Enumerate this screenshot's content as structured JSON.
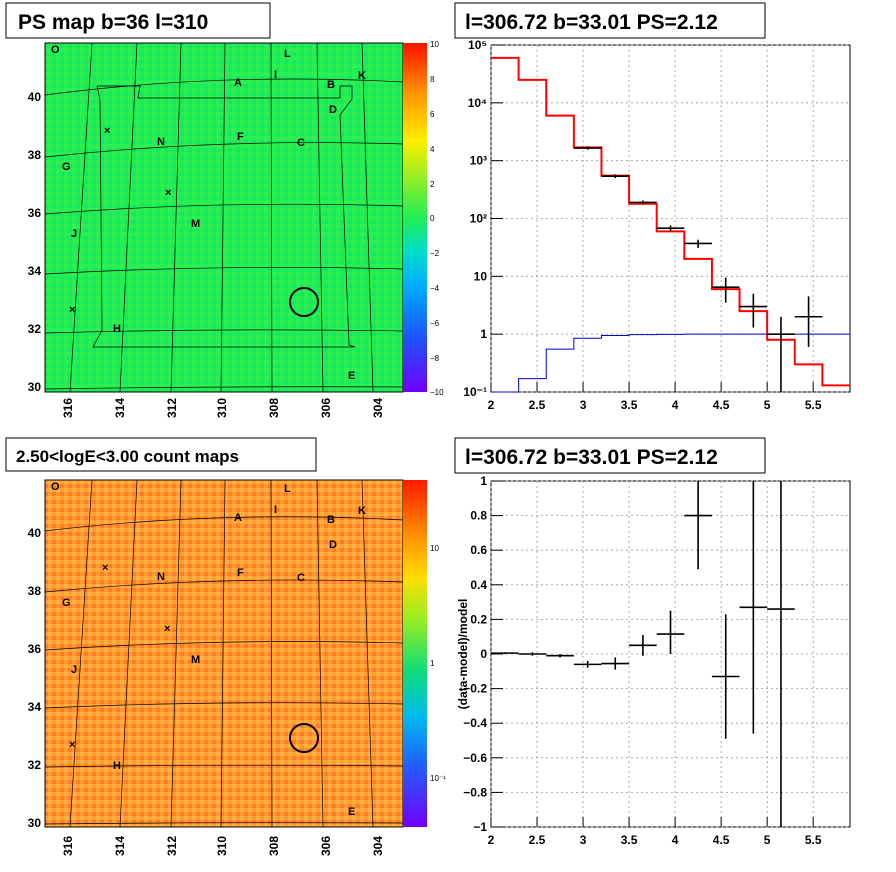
{
  "panels": {
    "ps_map": {
      "title": "PS map b=36 l=310",
      "x_ticks": [
        "316",
        "314",
        "312",
        "310",
        "308",
        "306",
        "304"
      ],
      "y_ticks": [
        "30",
        "32",
        "34",
        "36",
        "38",
        "40"
      ],
      "colorbar_ticks": [
        "10",
        "8",
        "6",
        "4",
        "2",
        "0",
        "−2",
        "−4",
        "−6",
        "−8",
        "−10"
      ]
    },
    "count_map": {
      "title": "2.50<logE<3.00 count maps",
      "x_ticks": [
        "316",
        "314",
        "312",
        "310",
        "308",
        "306",
        "304"
      ],
      "y_ticks": [
        "30",
        "32",
        "34",
        "36",
        "38",
        "40"
      ],
      "colorbar_ticks": [
        "10",
        "1",
        "10⁻¹"
      ]
    },
    "spectrum": {
      "title": "l=306.72 b=33.01 PS=2.12"
    },
    "residual": {
      "title": "l=306.72 b=33.01 PS=2.12"
    }
  },
  "map_labels": [
    "O",
    "L",
    "I",
    "K",
    "A",
    "B",
    "D",
    "N",
    "F",
    "C",
    "G",
    "M",
    "J",
    "H",
    "E"
  ],
  "colors": {
    "red": "#ff0000",
    "blue": "#0000cc",
    "map_green": "#22ee55",
    "map_orange": "#ff9933"
  },
  "chart_data": [
    {
      "type": "line",
      "title": "l=306.72 b=33.01 PS=2.12",
      "xlim": [
        2,
        5.9
      ],
      "ylim": [
        0.1,
        100000
      ],
      "yscale": "log",
      "x_ticks": [
        "2",
        "2.5",
        "3",
        "3.5",
        "4",
        "4.5",
        "5",
        "5.5"
      ],
      "y_ticks": [
        "10⁻¹",
        "1",
        "10",
        "10²",
        "10³",
        "10⁴",
        "10⁵"
      ],
      "grid": true,
      "series": [
        {
          "style": "step",
          "color": "#ff0000",
          "bin_edges": [
            2.0,
            2.3,
            2.6,
            2.9,
            3.2,
            3.5,
            3.8,
            4.1,
            4.4,
            4.7,
            5.0,
            5.3,
            5.6,
            5.9
          ],
          "values": [
            60000,
            25000,
            6000,
            1700,
            550,
            180,
            60,
            20,
            6,
            2.5,
            0.8,
            0.3,
            0.13
          ]
        },
        {
          "style": "step",
          "color": "#0000cc",
          "bin_edges": [
            2.0,
            2.3,
            2.6,
            2.9,
            3.2,
            3.5,
            3.8,
            4.1,
            4.4,
            4.7,
            5.0,
            5.3,
            5.6,
            5.9
          ],
          "values": [
            0.08,
            0.17,
            0.55,
            0.85,
            0.95,
            0.98,
            0.99,
            1.0,
            1.0,
            1.0,
            1.0,
            1.0,
            1.0
          ]
        },
        {
          "style": "errorbar",
          "color": "#000000",
          "x": [
            3.05,
            3.35,
            3.65,
            3.95,
            4.25,
            4.55,
            4.85,
            5.15,
            5.45
          ],
          "xerr": [
            0.15,
            0.15,
            0.15,
            0.15,
            0.15,
            0.15,
            0.15,
            0.15,
            0.15
          ],
          "y": [
            1650,
            540,
            190,
            68,
            37,
            6.5,
            3,
            1,
            2
          ],
          "ylo": [
            1550,
            500,
            175,
            60,
            31,
            3.5,
            1.3,
            0.1,
            0.6
          ],
          "yhi": [
            1750,
            580,
            205,
            76,
            43,
            9.5,
            5,
            2,
            4.5
          ]
        }
      ]
    },
    {
      "type": "scatter",
      "title": "l=306.72 b=33.01 PS=2.12",
      "ylabel": "(data-model)/model",
      "xlim": [
        2,
        5.9
      ],
      "ylim": [
        -1,
        1
      ],
      "x_ticks": [
        "2",
        "2.5",
        "3",
        "3.5",
        "4",
        "4.5",
        "5",
        "5.5"
      ],
      "y_ticks": [
        "−1",
        "−0.8",
        "−0.6",
        "−0.4",
        "−0.2",
        "0",
        "0.2",
        "0.4",
        "0.6",
        "0.8",
        "1"
      ],
      "grid": true,
      "series": [
        {
          "style": "errorbar",
          "color": "#000000",
          "x": [
            2.15,
            2.45,
            2.75,
            3.05,
            3.35,
            3.65,
            3.95,
            4.25,
            4.55,
            4.85,
            5.15
          ],
          "xerr": [
            0.15,
            0.15,
            0.15,
            0.15,
            0.15,
            0.15,
            0.15,
            0.15,
            0.15,
            0.15,
            0.15
          ],
          "y": [
            0.005,
            0.0,
            -0.01,
            -0.06,
            -0.055,
            0.05,
            0.115,
            0.8,
            -0.13,
            0.27,
            0.26
          ],
          "ylo": [
            0.0,
            -0.01,
            -0.02,
            -0.08,
            -0.09,
            -0.01,
            0.0,
            0.49,
            -0.49,
            -0.46,
            -1.0
          ],
          "yhi": [
            0.01,
            0.01,
            0.0,
            -0.04,
            -0.02,
            0.11,
            0.25,
            1.0,
            0.23,
            1.0,
            1.0
          ]
        }
      ]
    }
  ]
}
